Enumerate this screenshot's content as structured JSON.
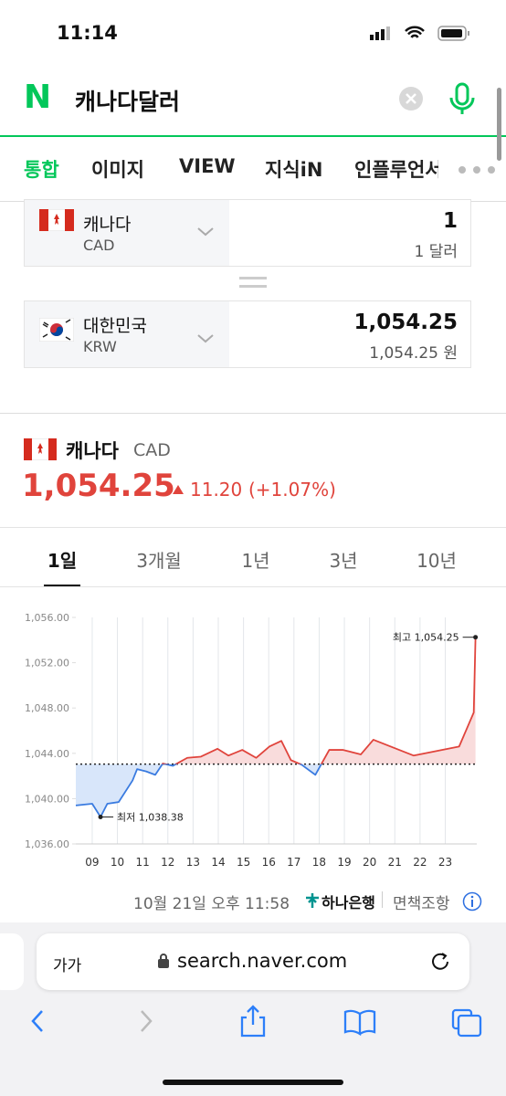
{
  "status": {
    "time": "11:14"
  },
  "search": {
    "logo": "N",
    "query": "캐나다달러"
  },
  "tabs": [
    "통합",
    "이미지",
    "VIEW",
    "지식iN",
    "인플루언서"
  ],
  "converter": {
    "from": {
      "name": "캐나다",
      "code": "CAD",
      "amount": "1",
      "amount_label": "1 달러"
    },
    "to": {
      "name": "대한민국",
      "code": "KRW",
      "amount": "1,054.25",
      "amount_label": "1,054.25 원"
    }
  },
  "rate": {
    "name": "캐나다",
    "code": "CAD",
    "price": "1,054.25",
    "change": "11.20",
    "change_pct": "(+1.07%)"
  },
  "periods": [
    "1일",
    "3개월",
    "1년",
    "3년",
    "10년"
  ],
  "chart_data": {
    "type": "line",
    "x": [
      8.35,
      9.0,
      9.33,
      9.6,
      10.05,
      10.6,
      10.78,
      11.14,
      11.5,
      11.8,
      12.2,
      12.77,
      13.3,
      13.97,
      14.4,
      14.95,
      15.5,
      16.03,
      16.5,
      16.88,
      17.3,
      17.85,
      18.4,
      18.95,
      19.65,
      20.15,
      21.75,
      23.55,
      24.13,
      24.2
    ],
    "values": [
      1039.4,
      1039.55,
      1038.38,
      1039.55,
      1039.7,
      1041.6,
      1042.6,
      1042.4,
      1042.1,
      1043.1,
      1042.9,
      1043.6,
      1043.7,
      1044.4,
      1043.8,
      1044.3,
      1043.6,
      1044.6,
      1045.1,
      1043.4,
      1043.0,
      1042.1,
      1044.3,
      1044.3,
      1043.9,
      1045.2,
      1043.8,
      1044.6,
      1047.6,
      1054.25
    ],
    "baseline": 1043.05,
    "color_above": "#e0443c",
    "color_below": "#3a7be0",
    "fill_above": "#f9dcdc",
    "fill_below": "#d8e6fa",
    "xlim": [
      8.35,
      24.25
    ],
    "ylim": [
      1036,
      1056
    ],
    "xticks": [
      {
        "value": 9,
        "label": "09"
      },
      10,
      11,
      12,
      13,
      14,
      15,
      16,
      17,
      18,
      19,
      20,
      21,
      22,
      23
    ],
    "yticks": [
      {
        "value": 1036,
        "label": "1,036.00"
      },
      {
        "value": 1040,
        "label": "1,040.00"
      },
      {
        "value": 1044,
        "label": "1,044.00"
      },
      {
        "value": 1048,
        "label": "1,048.00"
      },
      {
        "value": 1052,
        "label": "1,052.00"
      },
      {
        "value": 1056,
        "label": "1,056.00"
      }
    ],
    "grid": true,
    "max": {
      "label": "최고 1,054.25",
      "x": 24.2,
      "value": 1054.25
    },
    "min": {
      "label": "최저 1,038.38",
      "x": 9.33,
      "value": 1038.38
    }
  },
  "footer": {
    "updated": "10월 21일 오후 11:58",
    "bank": "하나은행",
    "disclaimer": "면책조항"
  },
  "browser": {
    "text_size": "가가",
    "url": "search.naver.com"
  }
}
